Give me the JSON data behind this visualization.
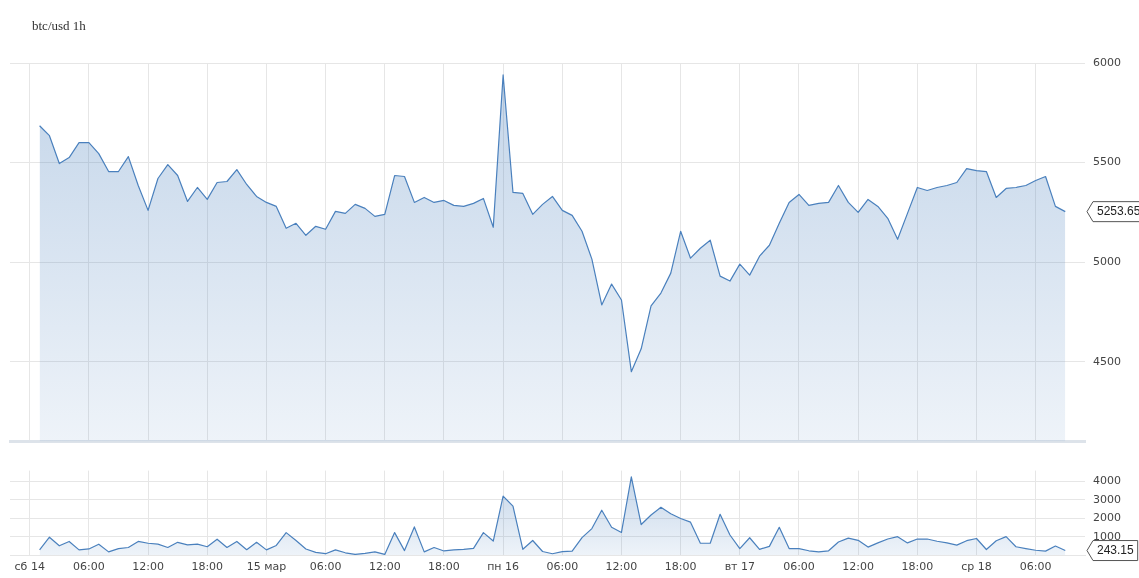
{
  "chart_data": [
    {
      "type": "area",
      "title": "btc/usd 1h",
      "x": [
        "--03-14T01:00",
        "--03-14T02:00",
        "--03-14T03:00",
        "--03-14T04:00",
        "--03-14T05:00",
        "--03-14T06:00",
        "--03-14T07:00",
        "--03-14T08:00",
        "--03-14T09:00",
        "--03-14T10:00",
        "--03-14T11:00",
        "--03-14T12:00",
        "--03-14T13:00",
        "--03-14T14:00",
        "--03-14T15:00",
        "--03-14T16:00",
        "--03-14T17:00",
        "--03-14T18:00",
        "--03-14T19:00",
        "--03-14T20:00",
        "--03-14T21:00",
        "--03-14T22:00",
        "--03-14T23:00",
        "--03-15T00:00",
        "--03-15T01:00",
        "--03-15T02:00",
        "--03-15T03:00",
        "--03-15T04:00",
        "--03-15T05:00",
        "--03-15T06:00",
        "--03-15T07:00",
        "--03-15T08:00",
        "--03-15T09:00",
        "--03-15T10:00",
        "--03-15T11:00",
        "--03-15T12:00",
        "--03-15T13:00",
        "--03-15T14:00",
        "--03-15T15:00",
        "--03-15T16:00",
        "--03-15T17:00",
        "--03-15T18:00",
        "--03-15T19:00",
        "--03-15T20:00",
        "--03-15T21:00",
        "--03-15T22:00",
        "--03-15T23:00",
        "--03-16T00:00",
        "--03-16T01:00",
        "--03-16T02:00",
        "--03-16T03:00",
        "--03-16T04:00",
        "--03-16T05:00",
        "--03-16T06:00",
        "--03-16T07:00",
        "--03-16T08:00",
        "--03-16T09:00",
        "--03-16T10:00",
        "--03-16T11:00",
        "--03-16T12:00",
        "--03-16T13:00",
        "--03-16T14:00",
        "--03-16T15:00",
        "--03-16T16:00",
        "--03-16T17:00",
        "--03-16T18:00",
        "--03-16T19:00",
        "--03-16T20:00",
        "--03-16T21:00",
        "--03-16T22:00",
        "--03-16T23:00",
        "--03-17T00:00",
        "--03-17T01:00",
        "--03-17T02:00",
        "--03-17T03:00",
        "--03-17T04:00",
        "--03-17T05:00",
        "--03-17T06:00",
        "--03-17T07:00",
        "--03-17T08:00",
        "--03-17T09:00",
        "--03-17T10:00",
        "--03-17T11:00",
        "--03-17T12:00",
        "--03-17T13:00",
        "--03-17T14:00",
        "--03-17T15:00",
        "--03-17T16:00",
        "--03-17T17:00",
        "--03-17T18:00",
        "--03-17T19:00",
        "--03-17T20:00",
        "--03-17T21:00",
        "--03-17T22:00",
        "--03-17T23:00",
        "--03-18T00:00",
        "--03-18T01:00",
        "--03-18T02:00",
        "--03-18T03:00",
        "--03-18T04:00",
        "--03-18T05:00",
        "--03-18T06:00",
        "--03-18T07:00",
        "--03-18T08:00",
        "--03-18T09:00"
      ],
      "values": [
        5685,
        5635,
        5495,
        5525,
        5600,
        5600,
        5545,
        5455,
        5455,
        5530,
        5385,
        5260,
        5420,
        5490,
        5435,
        5305,
        5375,
        5315,
        5400,
        5405,
        5465,
        5390,
        5330,
        5300,
        5280,
        5170,
        5195,
        5135,
        5180,
        5165,
        5255,
        5245,
        5290,
        5270,
        5230,
        5240,
        5435,
        5430,
        5300,
        5325,
        5300,
        5310,
        5285,
        5280,
        5295,
        5320,
        5175,
        5940,
        5350,
        5345,
        5240,
        5290,
        5330,
        5260,
        5235,
        5155,
        5015,
        4785,
        4890,
        4810,
        4450,
        4565,
        4780,
        4845,
        4945,
        5155,
        5020,
        5070,
        5110,
        4930,
        4905,
        4990,
        4935,
        5030,
        5085,
        5195,
        5300,
        5340,
        5285,
        5295,
        5300,
        5385,
        5300,
        5250,
        5315,
        5280,
        5220,
        5115,
        5245,
        5375,
        5360,
        5375,
        5385,
        5400,
        5470,
        5460,
        5455,
        5325,
        5370,
        5375,
        5385,
        5410,
        5430,
        5280,
        5253.65
      ],
      "color": "#4a80bd",
      "xlim": [
        "--03-13T22:00",
        "--03-18T11:00"
      ],
      "xticks": [
        "--03-14T00:00",
        "--03-14T06:00",
        "--03-14T12:00",
        "--03-14T18:00",
        "--03-15T00:00",
        "--03-15T06:00",
        "--03-15T12:00",
        "--03-15T18:00",
        "--03-16T00:00",
        "--03-16T06:00",
        "--03-16T12:00",
        "--03-16T18:00",
        "--03-17T00:00",
        "--03-17T06:00",
        "--03-17T12:00",
        "--03-17T18:00",
        "--03-18T00:00",
        "--03-18T06:00"
      ],
      "ylim": [
        4100,
        6000
      ],
      "yticks": [
        4500,
        5000,
        5500,
        6000
      ],
      "grid": true,
      "marker": "none",
      "tick_labels": "y",
      "annotations": [
        "5253.65"
      ]
    },
    {
      "type": "area",
      "x": [
        "--03-14T01:00",
        "--03-14T02:00",
        "--03-14T03:00",
        "--03-14T04:00",
        "--03-14T05:00",
        "--03-14T06:00",
        "--03-14T07:00",
        "--03-14T08:00",
        "--03-14T09:00",
        "--03-14T10:00",
        "--03-14T11:00",
        "--03-14T12:00",
        "--03-14T13:00",
        "--03-14T14:00",
        "--03-14T15:00",
        "--03-14T16:00",
        "--03-14T17:00",
        "--03-14T18:00",
        "--03-14T19:00",
        "--03-14T20:00",
        "--03-14T21:00",
        "--03-14T22:00",
        "--03-14T23:00",
        "--03-15T00:00",
        "--03-15T01:00",
        "--03-15T02:00",
        "--03-15T03:00",
        "--03-15T04:00",
        "--03-15T05:00",
        "--03-15T06:00",
        "--03-15T07:00",
        "--03-15T08:00",
        "--03-15T09:00",
        "--03-15T10:00",
        "--03-15T11:00",
        "--03-15T12:00",
        "--03-15T13:00",
        "--03-15T14:00",
        "--03-15T15:00",
        "--03-15T16:00",
        "--03-15T17:00",
        "--03-15T18:00",
        "--03-15T19:00",
        "--03-15T20:00",
        "--03-15T21:00",
        "--03-15T22:00",
        "--03-15T23:00",
        "--03-16T00:00",
        "--03-16T01:00",
        "--03-16T02:00",
        "--03-16T03:00",
        "--03-16T04:00",
        "--03-16T05:00",
        "--03-16T06:00",
        "--03-16T07:00",
        "--03-16T08:00",
        "--03-16T09:00",
        "--03-16T10:00",
        "--03-16T11:00",
        "--03-16T12:00",
        "--03-16T13:00",
        "--03-16T14:00",
        "--03-16T15:00",
        "--03-16T16:00",
        "--03-16T17:00",
        "--03-16T18:00",
        "--03-16T19:00",
        "--03-16T20:00",
        "--03-16T21:00",
        "--03-16T22:00",
        "--03-16T23:00",
        "--03-17T00:00",
        "--03-17T01:00",
        "--03-17T02:00",
        "--03-17T03:00",
        "--03-17T04:00",
        "--03-17T05:00",
        "--03-17T06:00",
        "--03-17T07:00",
        "--03-17T08:00",
        "--03-17T09:00",
        "--03-17T10:00",
        "--03-17T11:00",
        "--03-17T12:00",
        "--03-17T13:00",
        "--03-17T14:00",
        "--03-17T15:00",
        "--03-17T16:00",
        "--03-17T17:00",
        "--03-17T18:00",
        "--03-17T19:00",
        "--03-17T20:00",
        "--03-17T21:00",
        "--03-17T22:00",
        "--03-17T23:00",
        "--03-18T00:00",
        "--03-18T01:00",
        "--03-18T02:00",
        "--03-18T03:00",
        "--03-18T04:00",
        "--03-18T05:00",
        "--03-18T06:00",
        "--03-18T07:00",
        "--03-18T08:00",
        "--03-18T09:00"
      ],
      "values": [
        280,
        970,
        500,
        740,
        280,
        330,
        590,
        170,
        350,
        410,
        740,
        640,
        590,
        410,
        690,
        550,
        590,
        450,
        860,
        410,
        740,
        290,
        690,
        280,
        520,
        1220,
        790,
        330,
        140,
        70,
        280,
        120,
        30,
        90,
        170,
        30,
        1220,
        240,
        1530,
        170,
        410,
        220,
        280,
        310,
        360,
        1220,
        760,
        3210,
        2660,
        310,
        790,
        190,
        70,
        180,
        210,
        950,
        1440,
        2440,
        1510,
        1230,
        4260,
        1660,
        2180,
        2600,
        2250,
        1990,
        1790,
        640,
        640,
        2220,
        1090,
        350,
        940,
        310,
        470,
        1510,
        350,
        350,
        230,
        170,
        230,
        710,
        920,
        800,
        430,
        660,
        870,
        1000,
        660,
        870,
        870,
        750,
        660,
        540,
        780,
        900,
        300,
        780,
        1000,
        450,
        350,
        260,
        210,
        490,
        243.15
      ],
      "color": "#4a80bd",
      "xlim": [
        "--03-13T22:00",
        "--03-18T11:00"
      ],
      "xticks": [
        {
          "value": "--03-14T00:00",
          "label": "сб 14"
        },
        {
          "value": "--03-14T06:00",
          "label": "06:00"
        },
        {
          "value": "--03-14T12:00",
          "label": "12:00"
        },
        {
          "value": "--03-14T18:00",
          "label": "18:00"
        },
        {
          "value": "--03-15T00:00",
          "label": "15 мар"
        },
        {
          "value": "--03-15T06:00",
          "label": "06:00"
        },
        {
          "value": "--03-15T12:00",
          "label": "12:00"
        },
        {
          "value": "--03-15T18:00",
          "label": "18:00"
        },
        {
          "value": "--03-16T00:00",
          "label": "пн 16"
        },
        {
          "value": "--03-16T06:00",
          "label": "06:00"
        },
        {
          "value": "--03-16T12:00",
          "label": "12:00"
        },
        {
          "value": "--03-16T18:00",
          "label": "18:00"
        },
        {
          "value": "--03-17T00:00",
          "label": "вт 17"
        },
        {
          "value": "--03-17T06:00",
          "label": "06:00"
        },
        {
          "value": "--03-17T12:00",
          "label": "12:00"
        },
        {
          "value": "--03-17T18:00",
          "label": "18:00"
        },
        {
          "value": "--03-18T00:00",
          "label": "ср 18"
        },
        {
          "value": "--03-18T06:00",
          "label": "06:00"
        }
      ],
      "ylim": [
        0,
        4600
      ],
      "yticks": [
        1000,
        2000,
        3000,
        4000
      ],
      "grid": true,
      "marker": "none",
      "annotations": [
        "243.15"
      ]
    }
  ]
}
